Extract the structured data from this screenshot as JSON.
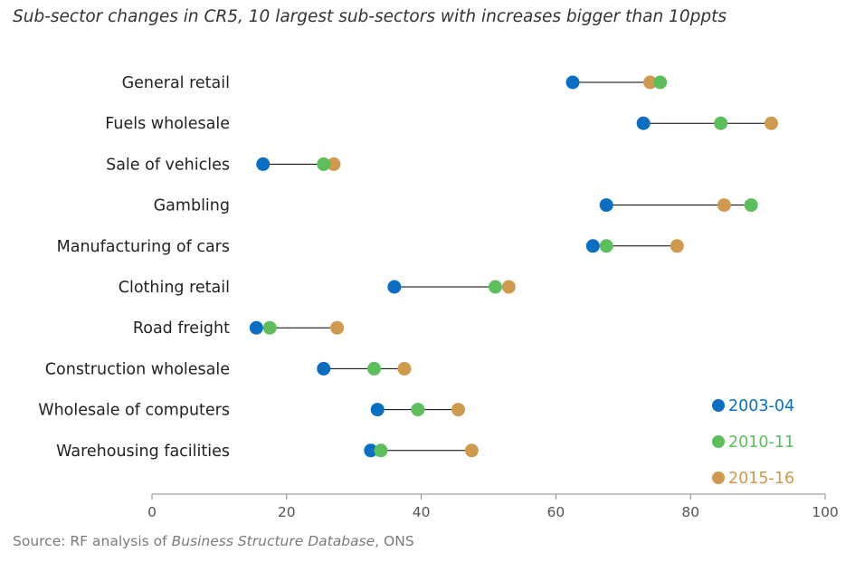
{
  "title": "Sub-sector changes in CR5, 10 largest sub-sectors with increases bigger than 10ppts",
  "source": {
    "prefix": "Source: RF analysis of ",
    "italic": "Business Structure Database",
    "suffix": ", ONS"
  },
  "colors": {
    "2003-04": "#0a6fc2",
    "2010-11": "#5cbf5c",
    "2015-16": "#d09a4e",
    "connector": "#000000",
    "axis": "#888888"
  },
  "chart_data": {
    "type": "scatter",
    "subtype": "dumbbell",
    "title": "Sub-sector changes in CR5, 10 largest sub-sectors with increases bigger than 10ppts",
    "xlim": [
      0,
      100
    ],
    "xticks": [
      0,
      20,
      40,
      60,
      80,
      100
    ],
    "grid": false,
    "legend_position": "bottom-right",
    "categories": [
      "General retail",
      "Fuels wholesale",
      "Sale of vehicles",
      "Gambling",
      "Manufacturing of cars",
      "Clothing retail",
      "Road freight",
      "Construction wholesale",
      "Wholesale of computers",
      "Warehousing facilities"
    ],
    "series": [
      {
        "name": "2003-04",
        "values": [
          62.5,
          73,
          16.5,
          67.5,
          65.5,
          36,
          15.5,
          25.5,
          33.5,
          32.5
        ]
      },
      {
        "name": "2010-11",
        "values": [
          75.5,
          84.5,
          25.5,
          89,
          67.5,
          51,
          17.5,
          33,
          39.5,
          34
        ]
      },
      {
        "name": "2015-16",
        "values": [
          74,
          92,
          27,
          85,
          78,
          53,
          27.5,
          37.5,
          45.5,
          47.5
        ]
      }
    ]
  }
}
